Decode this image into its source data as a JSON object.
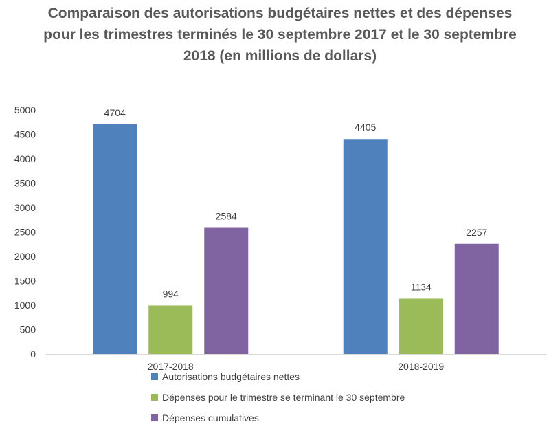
{
  "chart_data": {
    "type": "bar",
    "title": "Comparaison des autorisations budgétaires nettes et des dépenses pour les trimestres terminés le 30 septembre 2017 et le 30 septembre 2018 (en millions de dollars)",
    "categories": [
      "2017-2018",
      "2018-2019"
    ],
    "series": [
      {
        "name": "Autorisations budgétaires nettes",
        "values": [
          4704,
          4405
        ],
        "color": "#4F81BD"
      },
      {
        "name": "Dépenses pour le trimestre se terminant le 30 septembre",
        "values": [
          994,
          1134
        ],
        "color": "#9BBB59"
      },
      {
        "name": "Dépenses cumulatives",
        "values": [
          2584,
          2257
        ],
        "color": "#8064A2"
      }
    ],
    "ylim": [
      0,
      5000
    ],
    "yticks": [
      "0",
      "500",
      "1000",
      "1500",
      "2000",
      "2500",
      "3000",
      "3500",
      "4000",
      "4500",
      "5000"
    ],
    "xlabel": "",
    "ylabel": "",
    "grid": false,
    "legend_position": "bottom-left"
  }
}
